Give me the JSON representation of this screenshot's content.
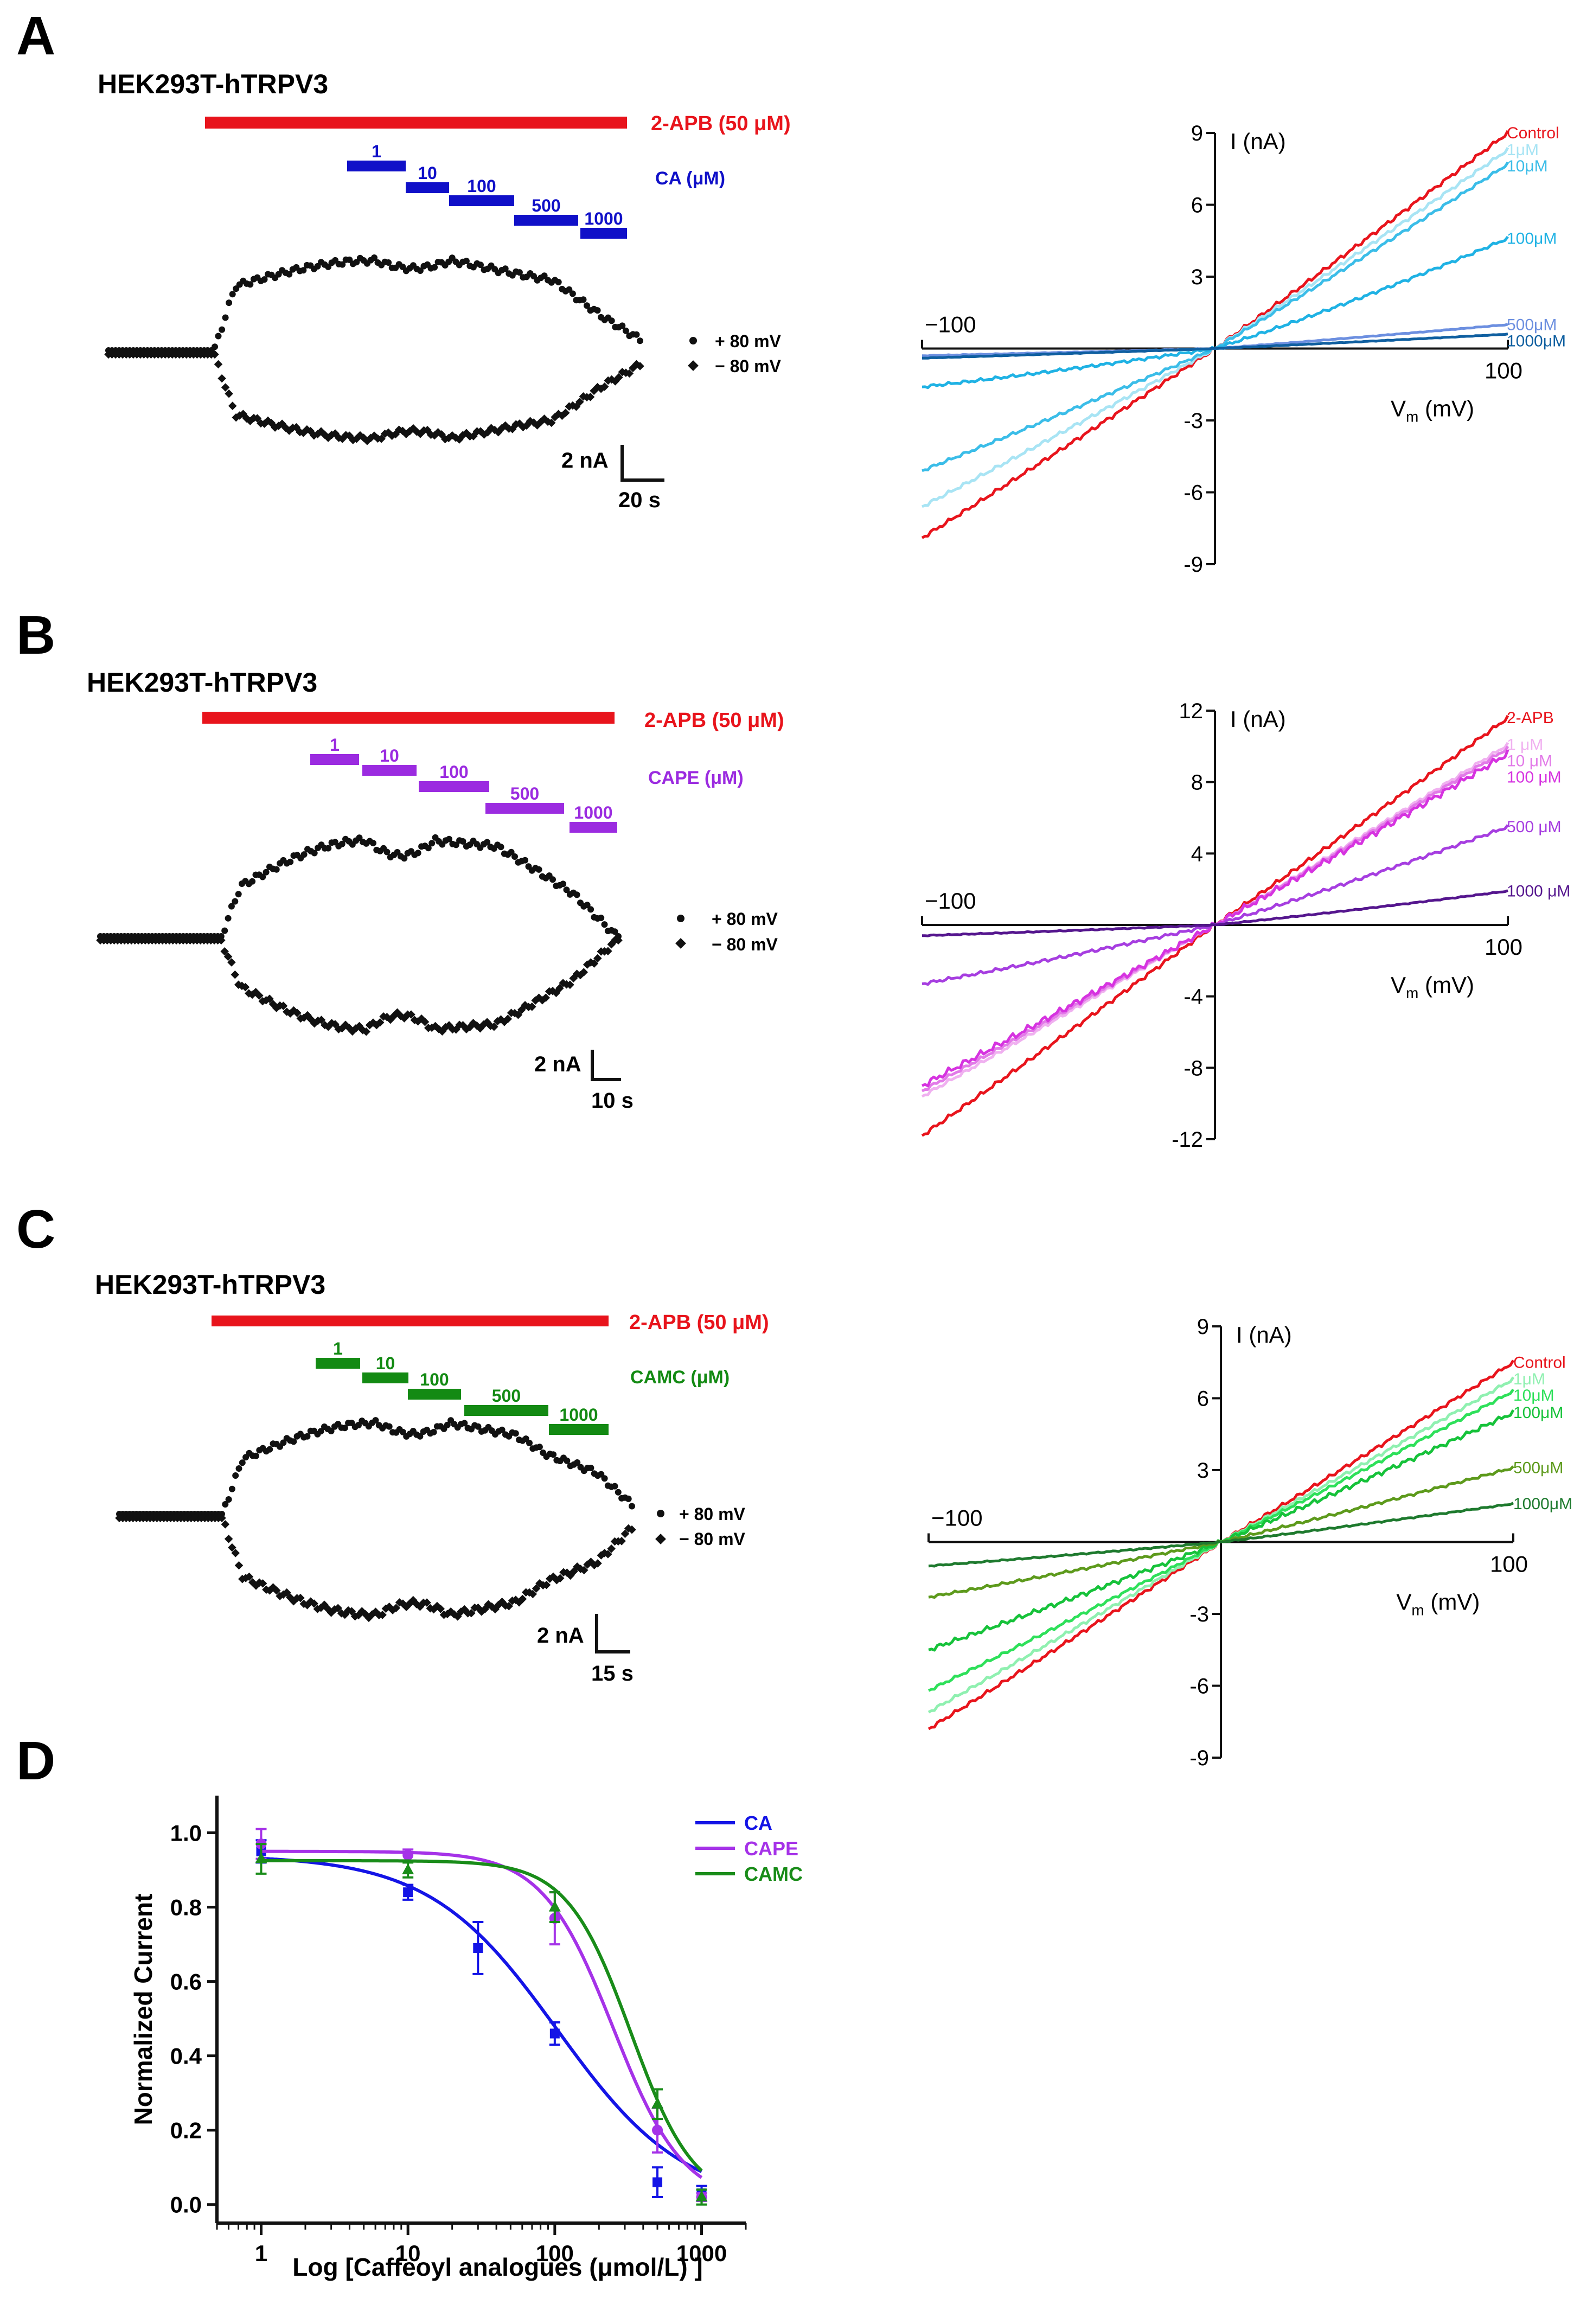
{
  "panels": {
    "A": {
      "letter": "A",
      "cell_label": "HEK293T-hTRPV3",
      "agonist_label": "2-APB (50 μM)",
      "drug_label": "CA (μM)",
      "color": "#1010c8",
      "conc_labels": [
        "1",
        "10",
        "100",
        "500",
        "1000"
      ],
      "legend_pos": "+ 80 mV",
      "legend_neg": "− 80 mV",
      "scale_y": "2 nA",
      "scale_x": "20 s"
    },
    "B": {
      "letter": "B",
      "cell_label": "HEK293T-hTRPV3",
      "agonist_label": "2-APB (50 μM)",
      "drug_label": "CAPE (μM)",
      "color": "#9b2be0",
      "conc_labels": [
        "1",
        "10",
        "100",
        "500",
        "1000"
      ],
      "legend_pos": "+ 80 mV",
      "legend_neg": "− 80 mV",
      "scale_y": "2 nA",
      "scale_x": "10 s"
    },
    "C": {
      "letter": "C",
      "cell_label": "HEK293T-hTRPV3",
      "agonist_label": "2-APB (50 μM)",
      "drug_label": "CAMC (μM)",
      "color": "#138a13",
      "conc_labels": [
        "1",
        "10",
        "100",
        "500",
        "1000"
      ],
      "legend_pos": "+ 80 mV",
      "legend_neg": "− 80 mV",
      "scale_y": "2 nA",
      "scale_x": "15 s"
    },
    "D": {
      "letter": "D"
    }
  },
  "chart_data": [
    {
      "id": "iv_A",
      "type": "line",
      "title": "",
      "xlabel_main": "V",
      "xlabel_sub": "m",
      "xlabel_rest": " (mV)",
      "ylabel": "I (nA)",
      "xlim": [
        -100,
        100
      ],
      "ylim": [
        -9,
        9
      ],
      "yticks": [
        9,
        6,
        3,
        -3,
        -6,
        -9
      ],
      "ytick_labels": [
        "9",
        "6",
        "3",
        "-3",
        "-6",
        "-9"
      ],
      "x_tick_labels": [
        "−100",
        "100"
      ],
      "series": [
        {
          "name": "Control",
          "color": "#e8141c",
          "x": [
            -100,
            100
          ],
          "y": [
            -7.9,
            9.0
          ],
          "curv": 0.04
        },
        {
          "name": "1μM",
          "color": "#a8e4f4",
          "x": [
            -100,
            100
          ],
          "y": [
            -6.6,
            8.3
          ],
          "curv": 0.04
        },
        {
          "name": "10μM",
          "color": "#3bbde8",
          "x": [
            -100,
            100
          ],
          "y": [
            -5.1,
            7.7
          ],
          "curv": 0.05
        },
        {
          "name": "100μM",
          "color": "#1fb2e4",
          "x": [
            -100,
            100
          ],
          "y": [
            -1.6,
            4.6
          ],
          "curv": 0.18
        },
        {
          "name": "500μM",
          "color": "#6c8fe0",
          "x": [
            -100,
            100
          ],
          "y": [
            -0.3,
            1.0
          ],
          "curv": 0.1
        },
        {
          "name": "1000μM",
          "color": "#0f5fa0",
          "x": [
            -100,
            100
          ],
          "y": [
            -0.4,
            0.6
          ],
          "curv": 0.1
        }
      ]
    },
    {
      "id": "iv_B",
      "type": "line",
      "title": "",
      "xlabel_main": "V",
      "xlabel_sub": "m",
      "xlabel_rest": " (mV)",
      "ylabel": "I (nA)",
      "xlim": [
        -100,
        100
      ],
      "ylim": [
        -12,
        12
      ],
      "yticks": [
        12,
        8,
        4,
        -4,
        -8,
        -12
      ],
      "ytick_labels": [
        "12",
        "8",
        "4",
        "-4",
        "-8",
        "-12"
      ],
      "x_tick_labels": [
        "−100",
        "100"
      ],
      "series": [
        {
          "name": "2-APB",
          "color": "#e8141c",
          "x": [
            -100,
            100
          ],
          "y": [
            -11.8,
            11.6
          ],
          "curv": 0.04
        },
        {
          "name": "1 μM",
          "color": "#f0b0f0",
          "x": [
            -100,
            100
          ],
          "y": [
            -9.6,
            10.1
          ],
          "curv": 0.04
        },
        {
          "name": "10 μM",
          "color": "#e27ae8",
          "x": [
            -100,
            100
          ],
          "y": [
            -9.3,
            9.9
          ],
          "curv": 0.04
        },
        {
          "name": "100 μM",
          "color": "#d633e0",
          "x": [
            -100,
            100
          ],
          "y": [
            -9.0,
            9.6
          ],
          "curv": 0.04
        },
        {
          "name": "500 μM",
          "color": "#a63ee0",
          "x": [
            -100,
            100
          ],
          "y": [
            -3.3,
            5.5
          ],
          "curv": 0.12
        },
        {
          "name": "1000 μM",
          "color": "#55168e",
          "x": [
            -100,
            100
          ],
          "y": [
            -0.6,
            1.9
          ],
          "curv": 0.15
        }
      ]
    },
    {
      "id": "iv_C",
      "type": "line",
      "title": "",
      "xlabel_main": "V",
      "xlabel_sub": "m",
      "xlabel_rest": " (mV)",
      "ylabel": "I (nA)",
      "xlim": [
        -100,
        100
      ],
      "ylim": [
        -9,
        9
      ],
      "yticks": [
        9,
        6,
        3,
        -3,
        -6,
        -9
      ],
      "ytick_labels": [
        "9",
        "6",
        "3",
        "-3",
        "-6",
        "-9"
      ],
      "x_tick_labels": [
        "−100",
        "100"
      ],
      "series": [
        {
          "name": "Control",
          "color": "#e8141c",
          "x": [
            -100,
            100
          ],
          "y": [
            -7.8,
            7.5
          ],
          "curv": 0.04
        },
        {
          "name": "1μM",
          "color": "#8ff0b0",
          "x": [
            -100,
            100
          ],
          "y": [
            -7.1,
            6.8
          ],
          "curv": 0.04
        },
        {
          "name": "10μM",
          "color": "#2ee05a",
          "x": [
            -100,
            100
          ],
          "y": [
            -6.2,
            6.3
          ],
          "curv": 0.05
        },
        {
          "name": "100μM",
          "color": "#16c23a",
          "x": [
            -100,
            100
          ],
          "y": [
            -4.5,
            5.4
          ],
          "curv": 0.06
        },
        {
          "name": "500μM",
          "color": "#5d9a1c",
          "x": [
            -100,
            100
          ],
          "y": [
            -2.3,
            3.1
          ],
          "curv": 0.08
        },
        {
          "name": "1000μM",
          "color": "#1e7a2e",
          "x": [
            -100,
            100
          ],
          "y": [
            -1.0,
            1.6
          ],
          "curv": 0.1
        }
      ]
    },
    {
      "id": "dose_D",
      "type": "scatter",
      "xlabel": "Log [Caffeoyl analogues (μmol/L) ]",
      "ylabel": "Normalized Current",
      "xscale": "log",
      "xlim": [
        0.5,
        2000
      ],
      "ylim": [
        -0.05,
        1.1
      ],
      "xticks": [
        1,
        10,
        100,
        1000
      ],
      "xtick_labels": [
        "1",
        "10",
        "100",
        "1000"
      ],
      "yticks": [
        0.0,
        0.2,
        0.4,
        0.6,
        0.8,
        1.0
      ],
      "ytick_labels": [
        "0.0",
        "0.2",
        "0.4",
        "0.6",
        "0.8",
        "1.0"
      ],
      "legend_position": "top-right",
      "series": [
        {
          "name": "CA",
          "color": "#1414e6",
          "marker": "square",
          "x": [
            1,
            10,
            30,
            100,
            500,
            1000
          ],
          "y": [
            0.95,
            0.84,
            0.69,
            0.46,
            0.06,
            0.03
          ],
          "err": [
            0.03,
            0.02,
            0.07,
            0.03,
            0.04,
            0.02
          ],
          "fit": {
            "top": 0.94,
            "bottom": 0.0,
            "ic50": 104,
            "hill": 1.0
          }
        },
        {
          "name": "CAPE",
          "color": "#a532e8",
          "marker": "circle",
          "x": [
            1,
            10,
            100,
            500,
            1000
          ],
          "y": [
            0.97,
            0.94,
            0.77,
            0.2,
            0.02
          ],
          "err": [
            0.04,
            0.015,
            0.07,
            0.06,
            0.01
          ],
          "fit": {
            "top": 0.95,
            "bottom": 0.0,
            "ic50": 250,
            "hill": 1.8
          }
        },
        {
          "name": "CAMC",
          "color": "#198c19",
          "marker": "triangle",
          "x": [
            1,
            10,
            100,
            500,
            1000
          ],
          "y": [
            0.93,
            0.9,
            0.8,
            0.27,
            0.02
          ],
          "err": [
            0.04,
            0.02,
            0.04,
            0.04,
            0.02
          ],
          "fit": {
            "top": 0.925,
            "bottom": 0.0,
            "ic50": 330,
            "hill": 2.0
          }
        }
      ]
    }
  ]
}
